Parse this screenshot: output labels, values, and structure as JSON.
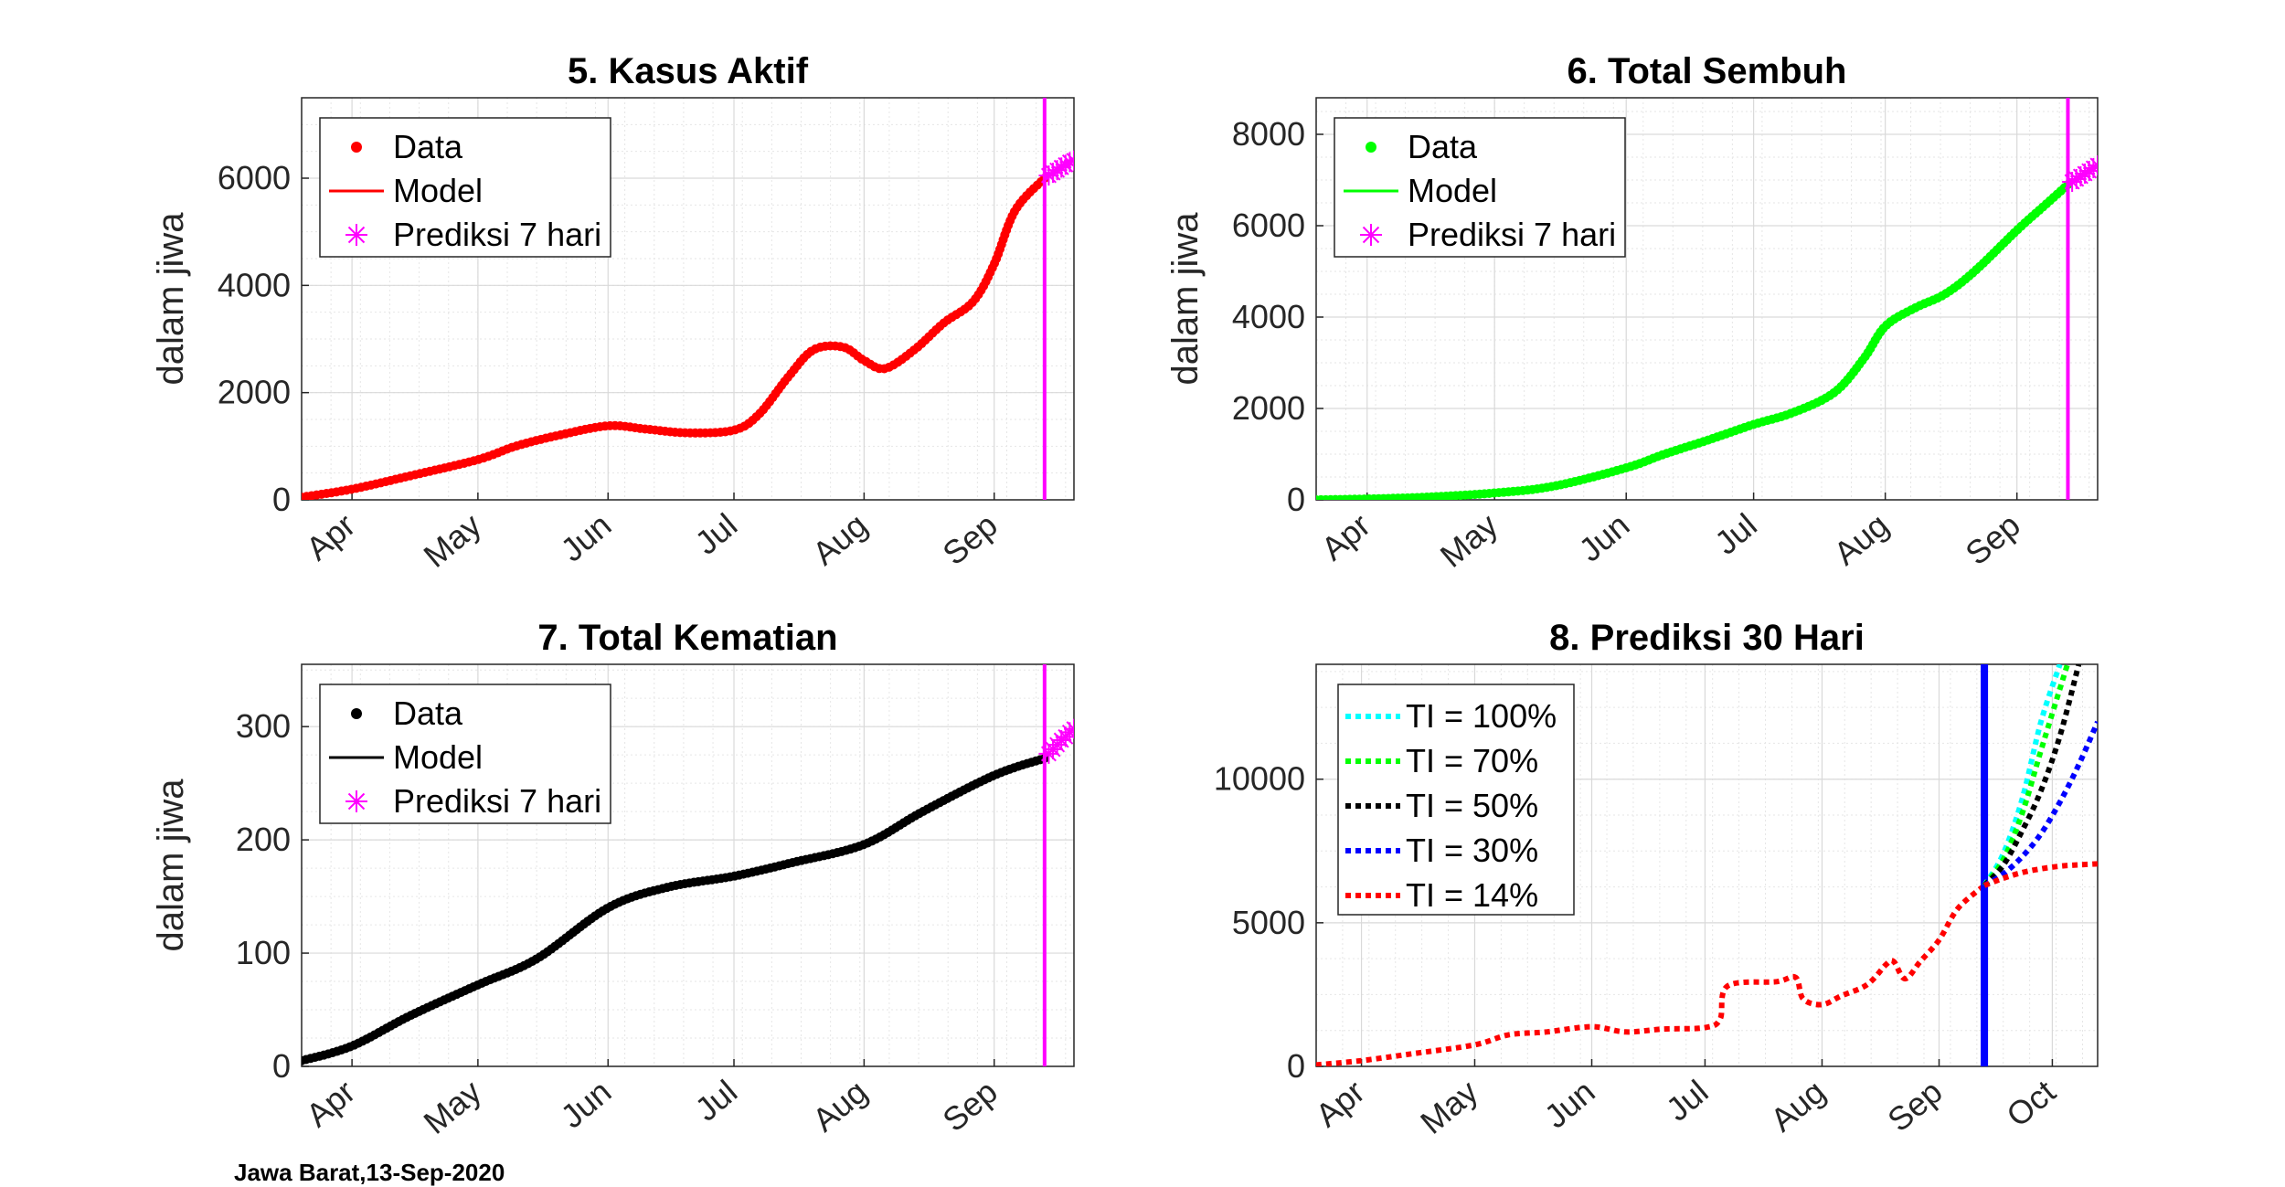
{
  "footer": {
    "caption": "Jawa Barat,13-Sep-2020"
  },
  "chart_data": [
    {
      "type": "scatter",
      "title": "5. Kasus Aktif",
      "xlabel": "",
      "ylabel": "dalam jiwa",
      "x_tick_labels": [
        "Apr",
        "May",
        "Jun",
        "Jul",
        "Aug",
        "Sep"
      ],
      "y_ticks": [
        0,
        2000,
        4000,
        6000
      ],
      "ylim": [
        0,
        7500
      ],
      "grid": true,
      "legend_position": "top-left",
      "series": [
        {
          "name": "Data",
          "color": "#ff0000",
          "marker": "dot",
          "x": [
            "2020-03-20",
            "2020-04-01",
            "2020-04-15",
            "2020-05-01",
            "2020-05-10",
            "2020-05-20",
            "2020-06-01",
            "2020-06-10",
            "2020-06-20",
            "2020-07-01",
            "2020-07-07",
            "2020-07-14",
            "2020-07-20",
            "2020-07-27",
            "2020-08-01",
            "2020-08-06",
            "2020-08-13",
            "2020-08-20",
            "2020-08-27",
            "2020-09-01",
            "2020-09-06",
            "2020-09-13"
          ],
          "y": [
            50,
            200,
            450,
            750,
            1000,
            1200,
            1380,
            1320,
            1250,
            1300,
            1600,
            2300,
            2800,
            2850,
            2600,
            2450,
            2800,
            3300,
            3700,
            4400,
            5400,
            6000
          ]
        },
        {
          "name": "Model",
          "color": "#ff0000",
          "marker": "line",
          "x": [
            "2020-03-20",
            "2020-04-01",
            "2020-04-15",
            "2020-05-01",
            "2020-05-10",
            "2020-05-20",
            "2020-06-01",
            "2020-06-10",
            "2020-06-20",
            "2020-07-01",
            "2020-07-07",
            "2020-07-14",
            "2020-07-20",
            "2020-07-27",
            "2020-08-01",
            "2020-08-06",
            "2020-08-13",
            "2020-08-20",
            "2020-08-27",
            "2020-09-01",
            "2020-09-06",
            "2020-09-13"
          ],
          "y": [
            50,
            200,
            450,
            750,
            1000,
            1200,
            1380,
            1320,
            1250,
            1300,
            1600,
            2300,
            2800,
            2850,
            2600,
            2450,
            2800,
            3300,
            3700,
            4400,
            5400,
            6000
          ]
        },
        {
          "name": "Prediksi 7 hari",
          "color": "#ff00ff",
          "marker": "asterisk",
          "x": [
            "2020-09-14",
            "2020-09-15",
            "2020-09-16",
            "2020-09-17",
            "2020-09-18",
            "2020-09-19",
            "2020-09-20"
          ],
          "y": [
            6050,
            6100,
            6150,
            6200,
            6250,
            6300,
            6330
          ]
        }
      ],
      "vline": {
        "x": "2020-09-13",
        "color": "#ff00ff"
      }
    },
    {
      "type": "scatter",
      "title": "6. Total Sembuh",
      "xlabel": "",
      "ylabel": "dalam jiwa",
      "x_tick_labels": [
        "Apr",
        "May",
        "Jun",
        "Jul",
        "Aug",
        "Sep"
      ],
      "y_ticks": [
        0,
        2000,
        4000,
        6000,
        8000
      ],
      "ylim": [
        0,
        8800
      ],
      "grid": true,
      "legend_position": "top-left",
      "series": [
        {
          "name": "Data",
          "color": "#00ff00",
          "marker": "dot",
          "x": [
            "2020-03-20",
            "2020-04-01",
            "2020-04-15",
            "2020-05-01",
            "2020-05-15",
            "2020-06-01",
            "2020-06-10",
            "2020-06-20",
            "2020-07-01",
            "2020-07-10",
            "2020-07-20",
            "2020-07-27",
            "2020-08-01",
            "2020-08-08",
            "2020-08-15",
            "2020-08-22",
            "2020-09-01",
            "2020-09-07",
            "2020-09-13"
          ],
          "y": [
            0,
            20,
            60,
            150,
            300,
            700,
            1000,
            1300,
            1650,
            1900,
            2350,
            3100,
            3800,
            4200,
            4500,
            5000,
            5900,
            6400,
            6900
          ]
        },
        {
          "name": "Model",
          "color": "#00ff00",
          "marker": "line",
          "x": [
            "2020-03-20",
            "2020-04-01",
            "2020-04-15",
            "2020-05-01",
            "2020-05-15",
            "2020-06-01",
            "2020-06-10",
            "2020-06-20",
            "2020-07-01",
            "2020-07-10",
            "2020-07-20",
            "2020-07-27",
            "2020-08-01",
            "2020-08-08",
            "2020-08-15",
            "2020-08-22",
            "2020-09-01",
            "2020-09-07",
            "2020-09-13"
          ],
          "y": [
            0,
            20,
            60,
            150,
            300,
            700,
            1000,
            1300,
            1650,
            1900,
            2350,
            3100,
            3800,
            4200,
            4500,
            5000,
            5900,
            6400,
            6900
          ]
        },
        {
          "name": "Prediksi 7 hari",
          "color": "#ff00ff",
          "marker": "asterisk",
          "x": [
            "2020-09-14",
            "2020-09-15",
            "2020-09-16",
            "2020-09-17",
            "2020-09-18",
            "2020-09-19",
            "2020-09-20"
          ],
          "y": [
            6960,
            7020,
            7080,
            7140,
            7200,
            7260,
            7320
          ]
        }
      ],
      "vline": {
        "x": "2020-09-13",
        "color": "#ff00ff"
      }
    },
    {
      "type": "scatter",
      "title": "7. Total Kematian",
      "xlabel": "",
      "ylabel": "dalam jiwa",
      "x_tick_labels": [
        "Apr",
        "May",
        "Jun",
        "Jul",
        "Aug",
        "Sep"
      ],
      "y_ticks": [
        0,
        100,
        200,
        300
      ],
      "ylim": [
        0,
        355
      ],
      "grid": true,
      "legend_position": "top-left",
      "series": [
        {
          "name": "Data",
          "color": "#000000",
          "marker": "dot",
          "x": [
            "2020-03-20",
            "2020-04-01",
            "2020-04-15",
            "2020-05-01",
            "2020-05-15",
            "2020-06-01",
            "2020-06-15",
            "2020-07-01",
            "2020-07-15",
            "2020-08-01",
            "2020-08-15",
            "2020-09-01",
            "2020-09-13"
          ],
          "y": [
            5,
            18,
            45,
            72,
            95,
            140,
            158,
            168,
            180,
            196,
            225,
            257,
            272
          ]
        },
        {
          "name": "Model",
          "color": "#000000",
          "marker": "line",
          "x": [
            "2020-03-20",
            "2020-04-01",
            "2020-04-15",
            "2020-05-01",
            "2020-05-15",
            "2020-06-01",
            "2020-06-15",
            "2020-07-01",
            "2020-07-15",
            "2020-08-01",
            "2020-08-15",
            "2020-09-01",
            "2020-09-13"
          ],
          "y": [
            5,
            18,
            45,
            72,
            95,
            140,
            158,
            168,
            180,
            196,
            225,
            257,
            272
          ]
        },
        {
          "name": "Prediksi 7 hari",
          "color": "#ff00ff",
          "marker": "asterisk",
          "x": [
            "2020-09-14",
            "2020-09-15",
            "2020-09-16",
            "2020-09-17",
            "2020-09-18",
            "2020-09-19",
            "2020-09-20"
          ],
          "y": [
            276,
            280,
            284,
            288,
            291,
            295,
            298
          ]
        }
      ],
      "vline": {
        "x": "2020-09-13",
        "color": "#ff00ff"
      }
    },
    {
      "type": "line",
      "title": "8. Prediksi 30 Hari",
      "xlabel": "",
      "ylabel": "",
      "x_tick_labels": [
        "Apr",
        "May",
        "Jun",
        "Jul",
        "Aug",
        "Sep",
        "Oct"
      ],
      "y_ticks": [
        0,
        5000,
        10000
      ],
      "ylim": [
        0,
        14000
      ],
      "grid": true,
      "legend_position": "top-left",
      "history": {
        "color": "#ff0000",
        "x": [
          "2020-03-20",
          "2020-04-01",
          "2020-04-15",
          "2020-05-01",
          "2020-05-10",
          "2020-05-20",
          "2020-06-01",
          "2020-06-10",
          "2020-06-20",
          "2020-07-01",
          "2020-07-05",
          "2020-07-07",
          "2020-07-20",
          "2020-07-25",
          "2020-07-27",
          "2020-08-01",
          "2020-08-06",
          "2020-08-13",
          "2020-08-18",
          "2020-08-20",
          "2020-08-23",
          "2020-08-27",
          "2020-09-01",
          "2020-09-06",
          "2020-09-13"
        ],
        "y": [
          50,
          200,
          450,
          750,
          1100,
          1200,
          1380,
          1200,
          1300,
          1350,
          1650,
          2800,
          2950,
          3100,
          2350,
          2150,
          2450,
          2850,
          3550,
          3650,
          3050,
          3650,
          4400,
          5500,
          6300
        ]
      },
      "series": [
        {
          "name": "TI = 100%",
          "color": "#00ffff",
          "x": [
            "2020-09-13",
            "2020-09-18",
            "2020-09-23",
            "2020-09-28",
            "2020-10-03"
          ],
          "y": [
            6300,
            7400,
            9300,
            12000,
            14000
          ]
        },
        {
          "name": "TI = 70%",
          "color": "#00ff00",
          "x": [
            "2020-09-13",
            "2020-09-18",
            "2020-09-23",
            "2020-09-28",
            "2020-10-05"
          ],
          "y": [
            6300,
            7200,
            8800,
            11000,
            14000
          ]
        },
        {
          "name": "TI = 50%",
          "color": "#000000",
          "x": [
            "2020-09-13",
            "2020-09-18",
            "2020-09-23",
            "2020-09-28",
            "2020-10-03",
            "2020-10-08"
          ],
          "y": [
            6300,
            7000,
            8200,
            9600,
            11500,
            14000
          ]
        },
        {
          "name": "TI = 30%",
          "color": "#0000ff",
          "x": [
            "2020-09-13",
            "2020-09-18",
            "2020-09-23",
            "2020-09-28",
            "2020-10-03",
            "2020-10-08",
            "2020-10-13"
          ],
          "y": [
            6300,
            6700,
            7300,
            8100,
            9200,
            10500,
            12000
          ]
        },
        {
          "name": "TI = 14%",
          "color": "#ff0000",
          "x": [
            "2020-09-13",
            "2020-09-18",
            "2020-09-23",
            "2020-09-28",
            "2020-10-03",
            "2020-10-08",
            "2020-10-13"
          ],
          "y": [
            6300,
            6550,
            6750,
            6880,
            6970,
            7020,
            7050
          ]
        }
      ],
      "vline": {
        "x": "2020-09-13",
        "color": "#0000ff"
      }
    }
  ]
}
